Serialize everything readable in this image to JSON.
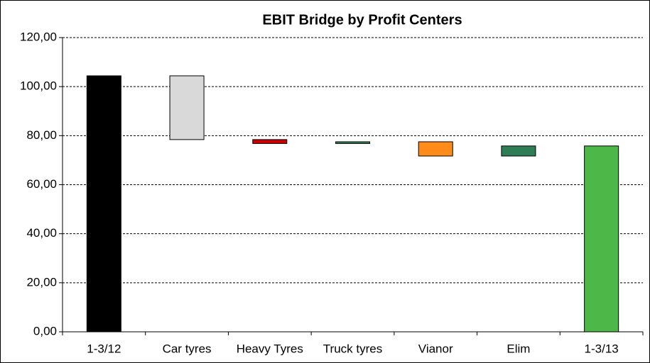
{
  "chart_data": {
    "type": "waterfall",
    "title": "EBIT Bridge by Profit Centers",
    "categories": [
      "1-3/12",
      "Car tyres",
      "Heavy Tyres",
      "Truck tyres",
      "Vianor",
      "Elim",
      "1-3/13"
    ],
    "values": [
      104.4,
      -26.0,
      -1.6,
      0.7,
      -5.8,
      4.1,
      75.8
    ],
    "measure": [
      "absolute",
      "relative",
      "relative",
      "relative",
      "relative",
      "relative",
      "total"
    ],
    "colors": [
      "#000000",
      "#d9d9d9",
      "#cc0000",
      "#2e8b57",
      "#ff8c1a",
      "#2e7d55",
      "#4db848"
    ],
    "ylim": [
      0,
      120
    ],
    "yticks": [
      {
        "value": 0,
        "label": "0,00"
      },
      {
        "value": 20,
        "label": "20,00"
      },
      {
        "value": 40,
        "label": "40,00"
      },
      {
        "value": 60,
        "label": "60,00"
      },
      {
        "value": 80,
        "label": "80,00"
      },
      {
        "value": 100,
        "label": "100,00"
      },
      {
        "value": 120,
        "label": "120,00"
      }
    ],
    "grid": true
  }
}
